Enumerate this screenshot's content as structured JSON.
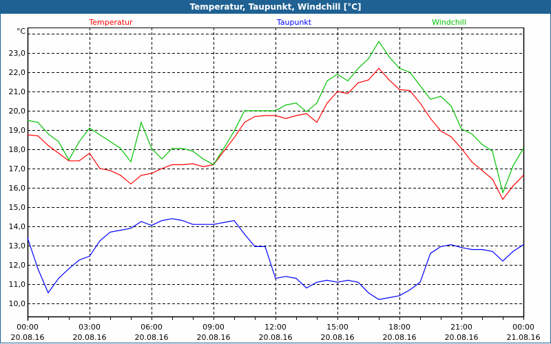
{
  "window": {
    "title": "Temperatur, Taupunkt, Windchill [°C]"
  },
  "chart_data": {
    "type": "line",
    "title": "Temperatur, Taupunkt, Windchill [°C]",
    "ylabel": "°C",
    "xlabel": "",
    "ylim": [
      9.32,
      24.32
    ],
    "xlim_hours": [
      0,
      24
    ],
    "yticks": [
      10,
      11,
      12,
      13,
      14,
      15,
      16,
      17,
      18,
      19,
      20,
      21,
      22,
      23
    ],
    "ytick_labels": [
      "10,0",
      "11,0",
      "12,0",
      "13,0",
      "14,0",
      "15,0",
      "16,0",
      "17,0",
      "18,0",
      "19,0",
      "20,0",
      "21,0",
      "22,0",
      "23,0"
    ],
    "xticks": [
      {
        "hour": 0,
        "time": "00:00",
        "date": "20.08.16"
      },
      {
        "hour": 3,
        "time": "03:00",
        "date": "20.08.16"
      },
      {
        "hour": 6,
        "time": "06:00",
        "date": "20.08.16"
      },
      {
        "hour": 9,
        "time": "09:00",
        "date": "20.08.16"
      },
      {
        "hour": 12,
        "time": "12:00",
        "date": "20.08.16"
      },
      {
        "hour": 15,
        "time": "15:00",
        "date": "20.08.16"
      },
      {
        "hour": 18,
        "time": "18:00",
        "date": "20.08.16"
      },
      {
        "hour": 21,
        "time": "21:00",
        "date": "20.08.16"
      },
      {
        "hour": 24,
        "time": "00:00",
        "date": "21.08.16"
      }
    ],
    "grid": true,
    "legend_placement": "top",
    "x_step_hours": 0.5,
    "series": [
      {
        "name": "Temperatur",
        "color": "#ff0000",
        "values": [
          18.75,
          18.7,
          18.2,
          17.8,
          17.4,
          17.4,
          17.8,
          17.0,
          16.9,
          16.65,
          16.2,
          16.65,
          16.75,
          17.0,
          17.2,
          17.2,
          17.25,
          17.1,
          17.2,
          17.9,
          18.6,
          19.4,
          19.7,
          19.75,
          19.75,
          19.6,
          19.75,
          19.85,
          19.4,
          20.4,
          21.0,
          20.9,
          21.45,
          21.6,
          22.2,
          21.6,
          21.1,
          21.05,
          20.4,
          19.6,
          18.95,
          18.65,
          18.05,
          17.35,
          16.9,
          16.45,
          15.4,
          16.1,
          16.65
        ]
      },
      {
        "name": "Taupunkt",
        "color": "#0000ff",
        "values": [
          13.4,
          11.8,
          10.55,
          11.3,
          11.8,
          12.25,
          12.45,
          13.25,
          13.7,
          13.8,
          13.9,
          14.25,
          14.05,
          14.3,
          14.4,
          14.3,
          14.1,
          14.1,
          14.1,
          14.2,
          14.3,
          13.6,
          12.95,
          12.95,
          11.3,
          11.4,
          11.3,
          10.8,
          11.1,
          11.2,
          11.1,
          11.2,
          11.1,
          10.55,
          10.2,
          10.3,
          10.4,
          10.7,
          11.1,
          12.6,
          12.95,
          13.05,
          12.9,
          12.8,
          12.8,
          12.7,
          12.2,
          12.7,
          13.05
        ]
      },
      {
        "name": "Windchill",
        "color": "#00c000",
        "values": [
          19.5,
          19.4,
          18.8,
          18.4,
          17.45,
          18.4,
          19.1,
          18.75,
          18.4,
          18.05,
          17.35,
          19.4,
          18.05,
          17.5,
          18.05,
          18.05,
          17.9,
          17.5,
          17.2,
          18.05,
          18.95,
          20.0,
          20.0,
          20.0,
          20.0,
          20.3,
          20.4,
          19.95,
          20.4,
          21.55,
          21.9,
          21.55,
          22.2,
          22.7,
          23.6,
          22.8,
          22.2,
          22.0,
          21.3,
          20.6,
          20.75,
          20.25,
          19.05,
          18.8,
          18.25,
          17.9,
          15.75,
          17.15,
          18.05
        ]
      }
    ]
  }
}
